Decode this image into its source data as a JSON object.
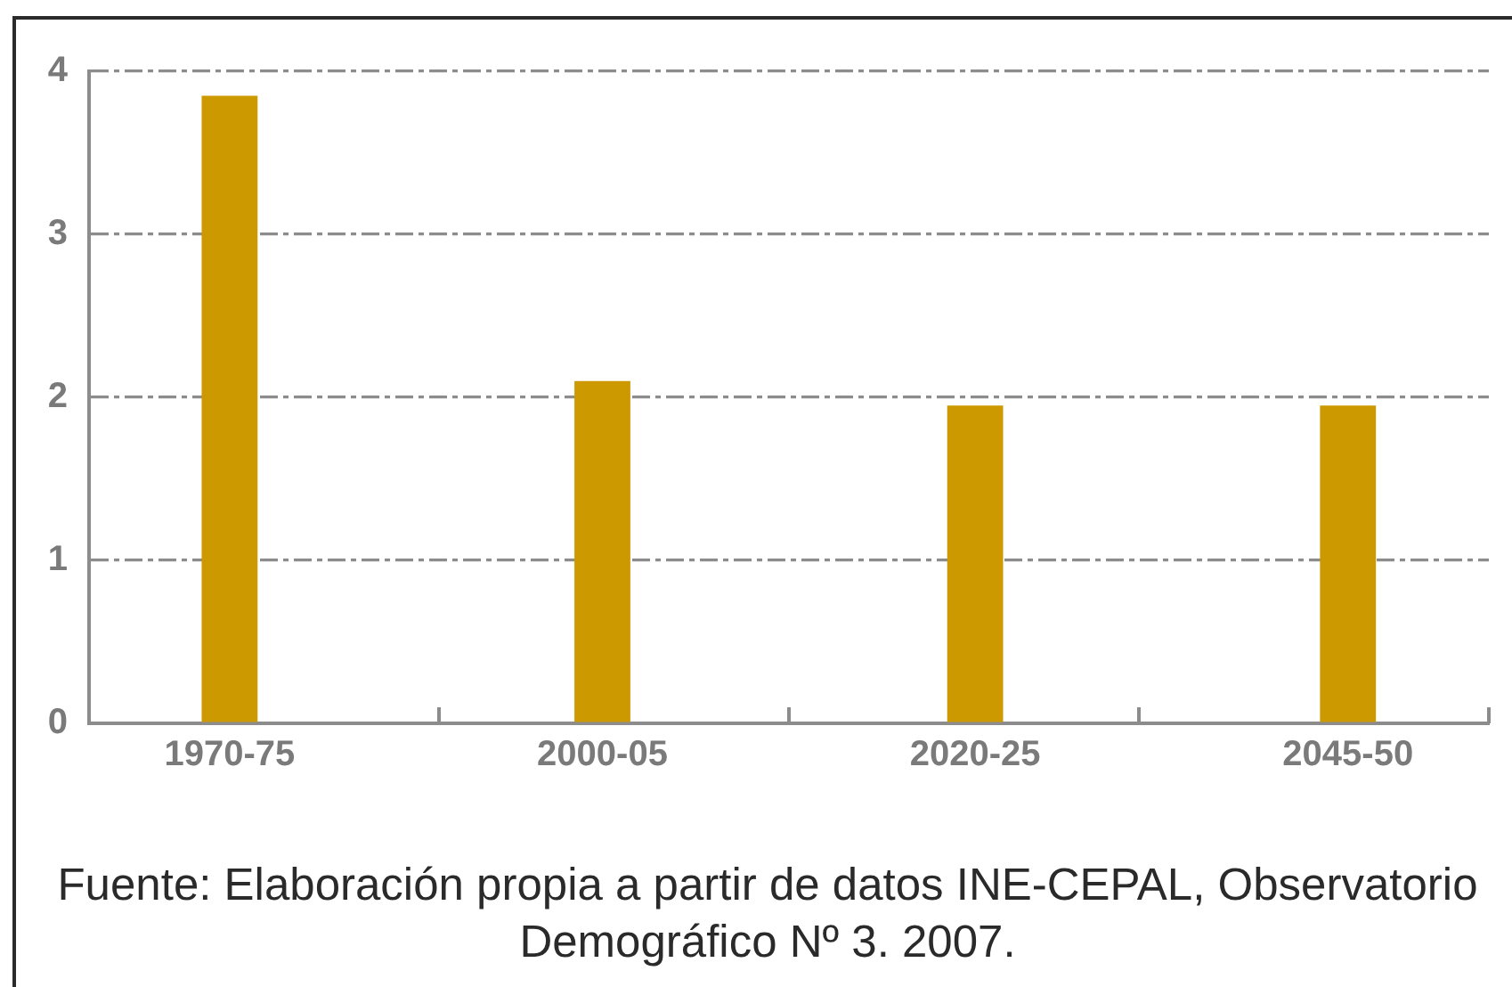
{
  "chart_data": {
    "type": "bar",
    "categories": [
      "1970-75",
      "2000-05",
      "2020-25",
      "2045-50"
    ],
    "values": [
      3.85,
      2.1,
      1.95,
      1.95
    ],
    "color": "#cc9900",
    "ylim": [
      0,
      4
    ],
    "yticks": [
      0,
      1,
      2,
      3,
      4
    ],
    "grid": "y",
    "annotations": [
      "Fuente: Elaboración propia a partir de datos INE-CEPAL, Observatorio Demográfico Nº 3. 2007."
    ]
  }
}
